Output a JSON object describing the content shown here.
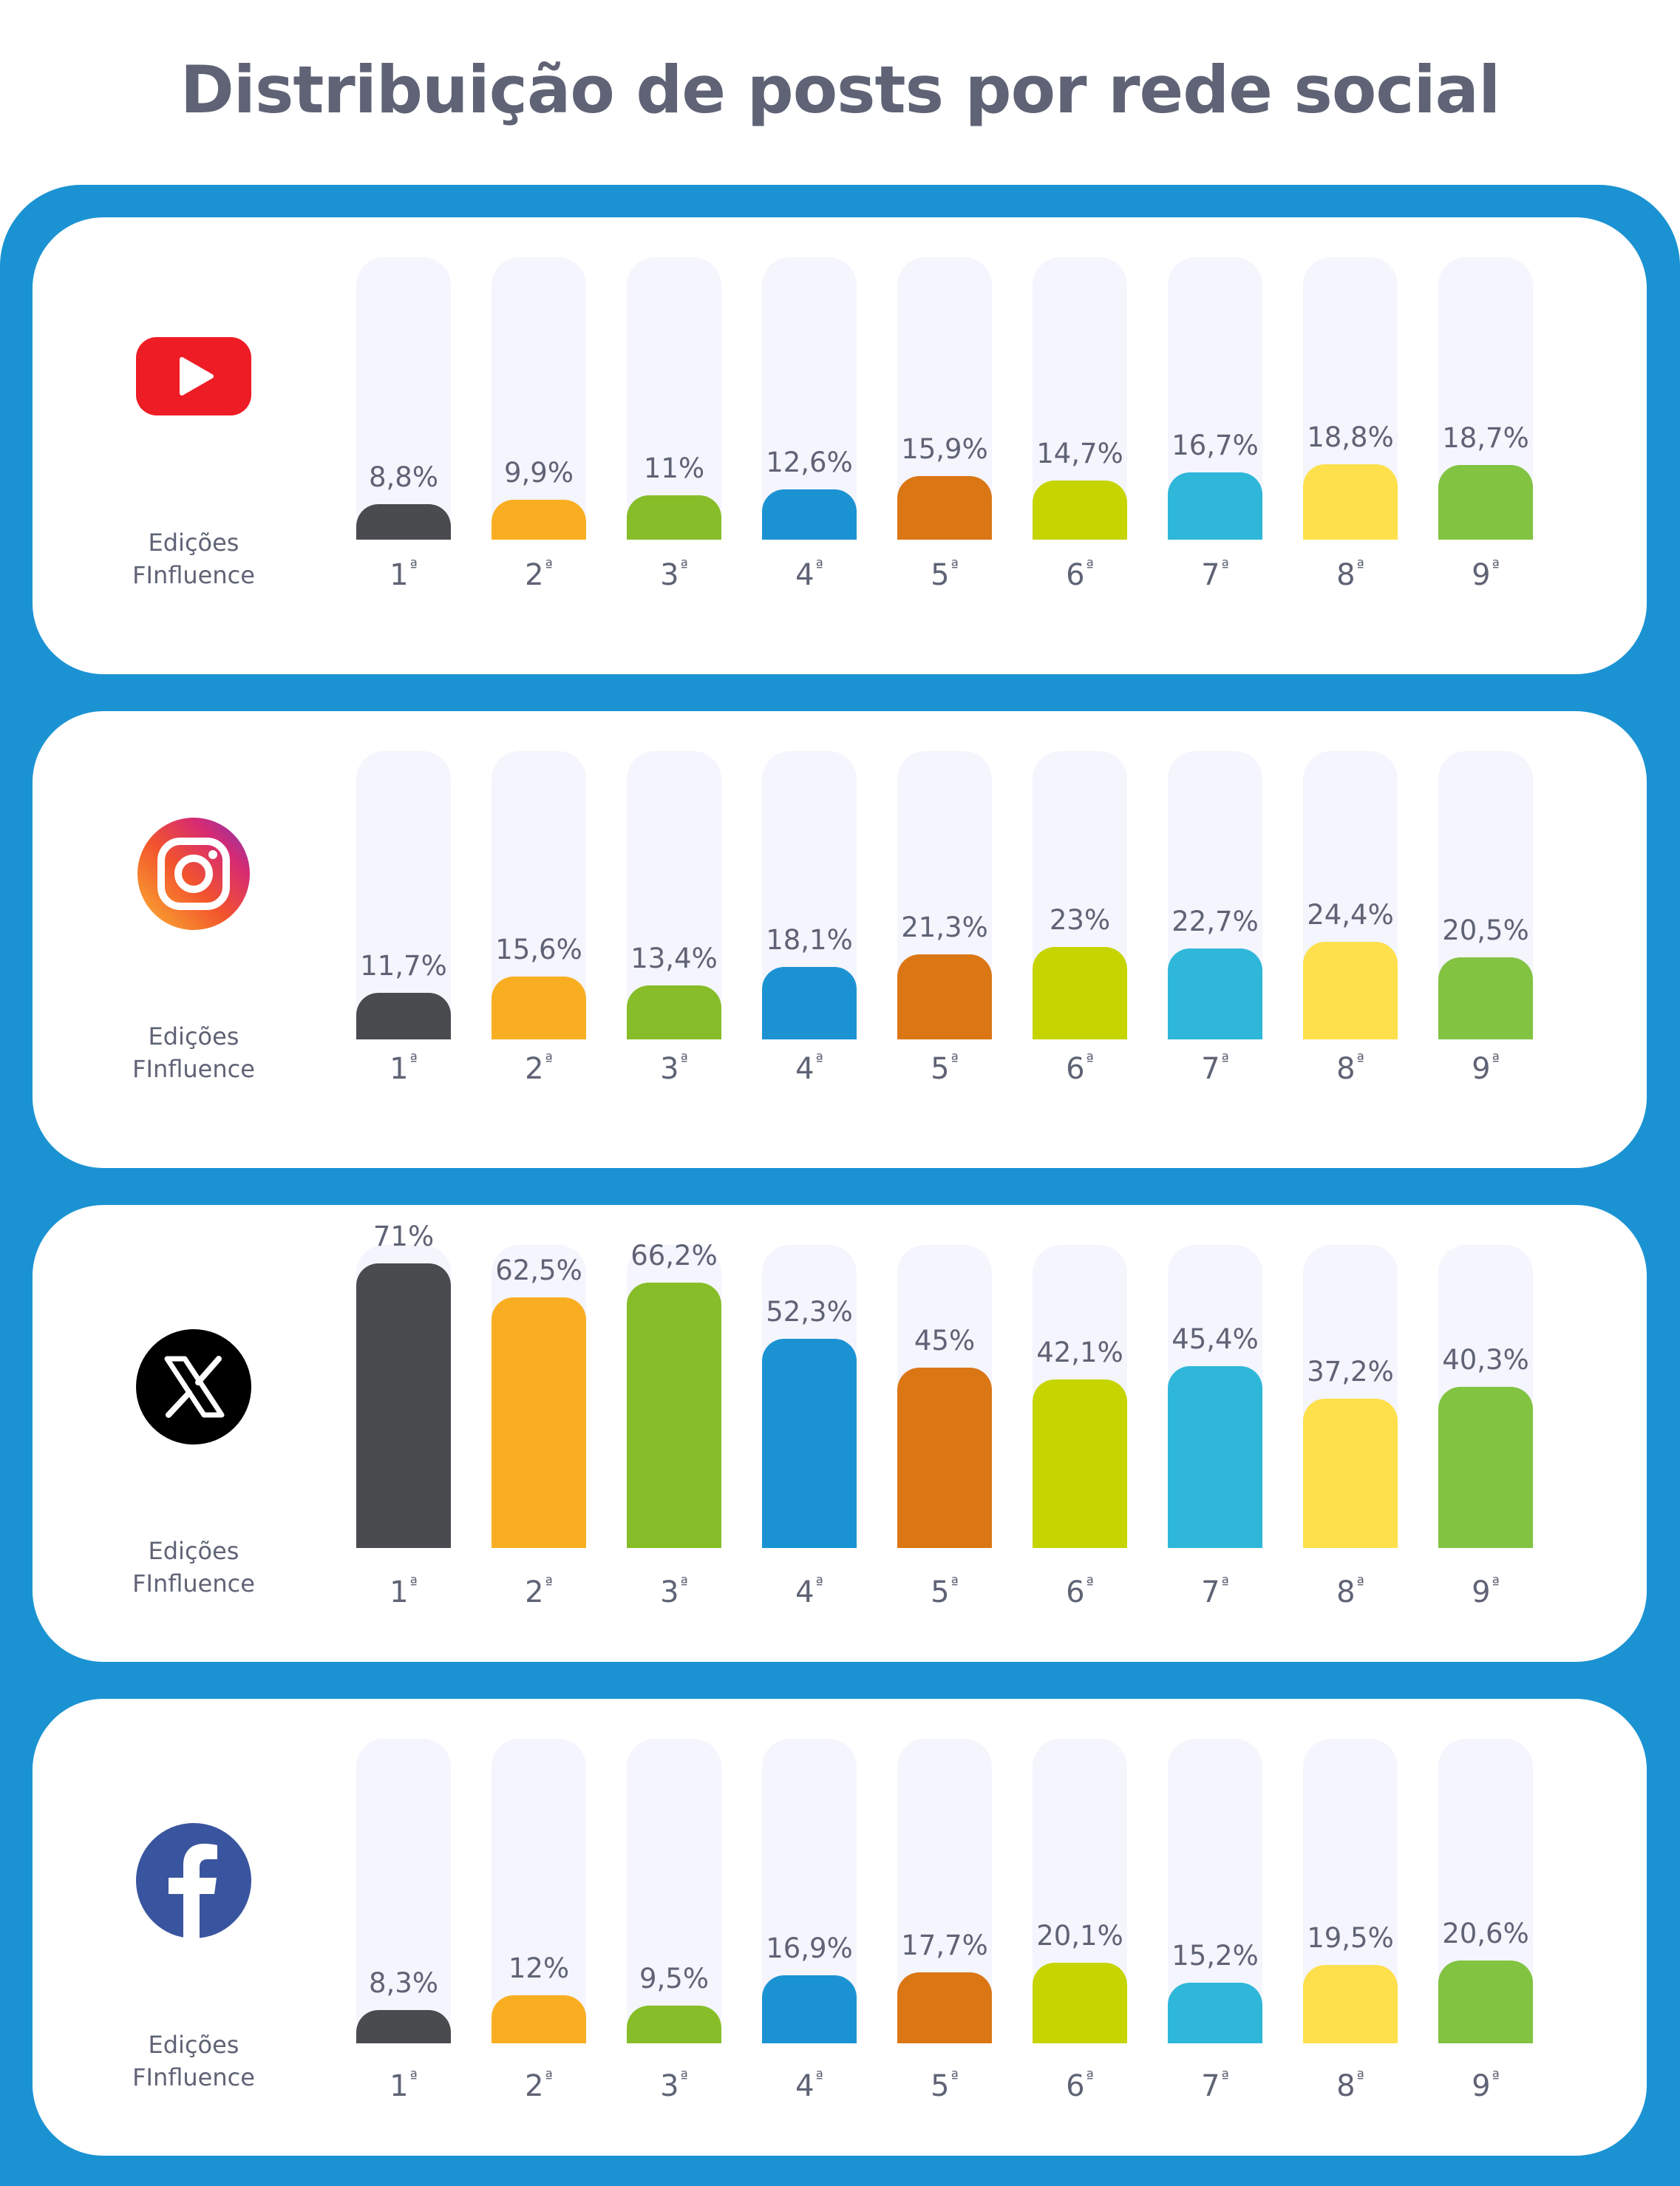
{
  "title": "Distribuição de posts por rede social",
  "edition_label": [
    "Edições",
    "FInfluence"
  ],
  "colors": [
    "#4a4b4f",
    "#f9ae22",
    "#87bd28",
    "#1b93d3",
    "#db7615",
    "#c6d400",
    "#2eb7d9",
    "#fde04b",
    "#82c342"
  ],
  "chart_data": [
    {
      "type": "bar",
      "network": "youtube",
      "icon": "youtube-icon",
      "categories": [
        "1ª",
        "2ª",
        "3ª",
        "4ª",
        "5ª",
        "6ª",
        "7ª",
        "8ª",
        "9ª"
      ],
      "values": [
        8.8,
        9.9,
        11,
        12.6,
        15.9,
        14.7,
        16.7,
        18.8,
        18.7
      ],
      "labels": [
        "8,8%",
        "9,9%",
        "11%",
        "12,6%",
        "15,9%",
        "14,7%",
        "16,7%",
        "18,8%",
        "18,7%"
      ],
      "ylim": [
        0,
        100
      ]
    },
    {
      "type": "bar",
      "network": "instagram",
      "icon": "instagram-icon",
      "categories": [
        "1ª",
        "2ª",
        "3ª",
        "4ª",
        "5ª",
        "6ª",
        "7ª",
        "8ª",
        "9ª"
      ],
      "values": [
        11.7,
        15.6,
        13.4,
        18.1,
        21.3,
        23,
        22.7,
        24.4,
        20.5
      ],
      "labels": [
        "11,7%",
        "15,6%",
        "13,4%",
        "18,1%",
        "21,3%",
        "23%",
        "22,7%",
        "24,4%",
        "20,5%"
      ],
      "ylim": [
        0,
        100
      ]
    },
    {
      "type": "bar",
      "network": "x",
      "icon": "x-icon",
      "categories": [
        "1ª",
        "2ª",
        "3ª",
        "4ª",
        "5ª",
        "6ª",
        "7ª",
        "8ª",
        "9ª"
      ],
      "values": [
        71,
        62.5,
        66.2,
        52.3,
        45,
        42.1,
        45.4,
        37.2,
        40.3
      ],
      "labels": [
        "71%",
        "62,5%",
        "66,2%",
        "52,3%",
        "45%",
        "42,1%",
        "45,4%",
        "37,2%",
        "40,3%"
      ],
      "ylim": [
        0,
        100
      ]
    },
    {
      "type": "bar",
      "network": "facebook",
      "icon": "facebook-icon",
      "categories": [
        "1ª",
        "2ª",
        "3ª",
        "4ª",
        "5ª",
        "6ª",
        "7ª",
        "8ª",
        "9ª"
      ],
      "values": [
        8.3,
        12,
        9.5,
        16.9,
        17.7,
        20.1,
        15.2,
        19.5,
        20.6
      ],
      "labels": [
        "8,3%",
        "12%",
        "9,5%",
        "16,9%",
        "17,7%",
        "20,1%",
        "15,2%",
        "19,5%",
        "20,6%"
      ],
      "ylim": [
        0,
        100
      ]
    }
  ]
}
